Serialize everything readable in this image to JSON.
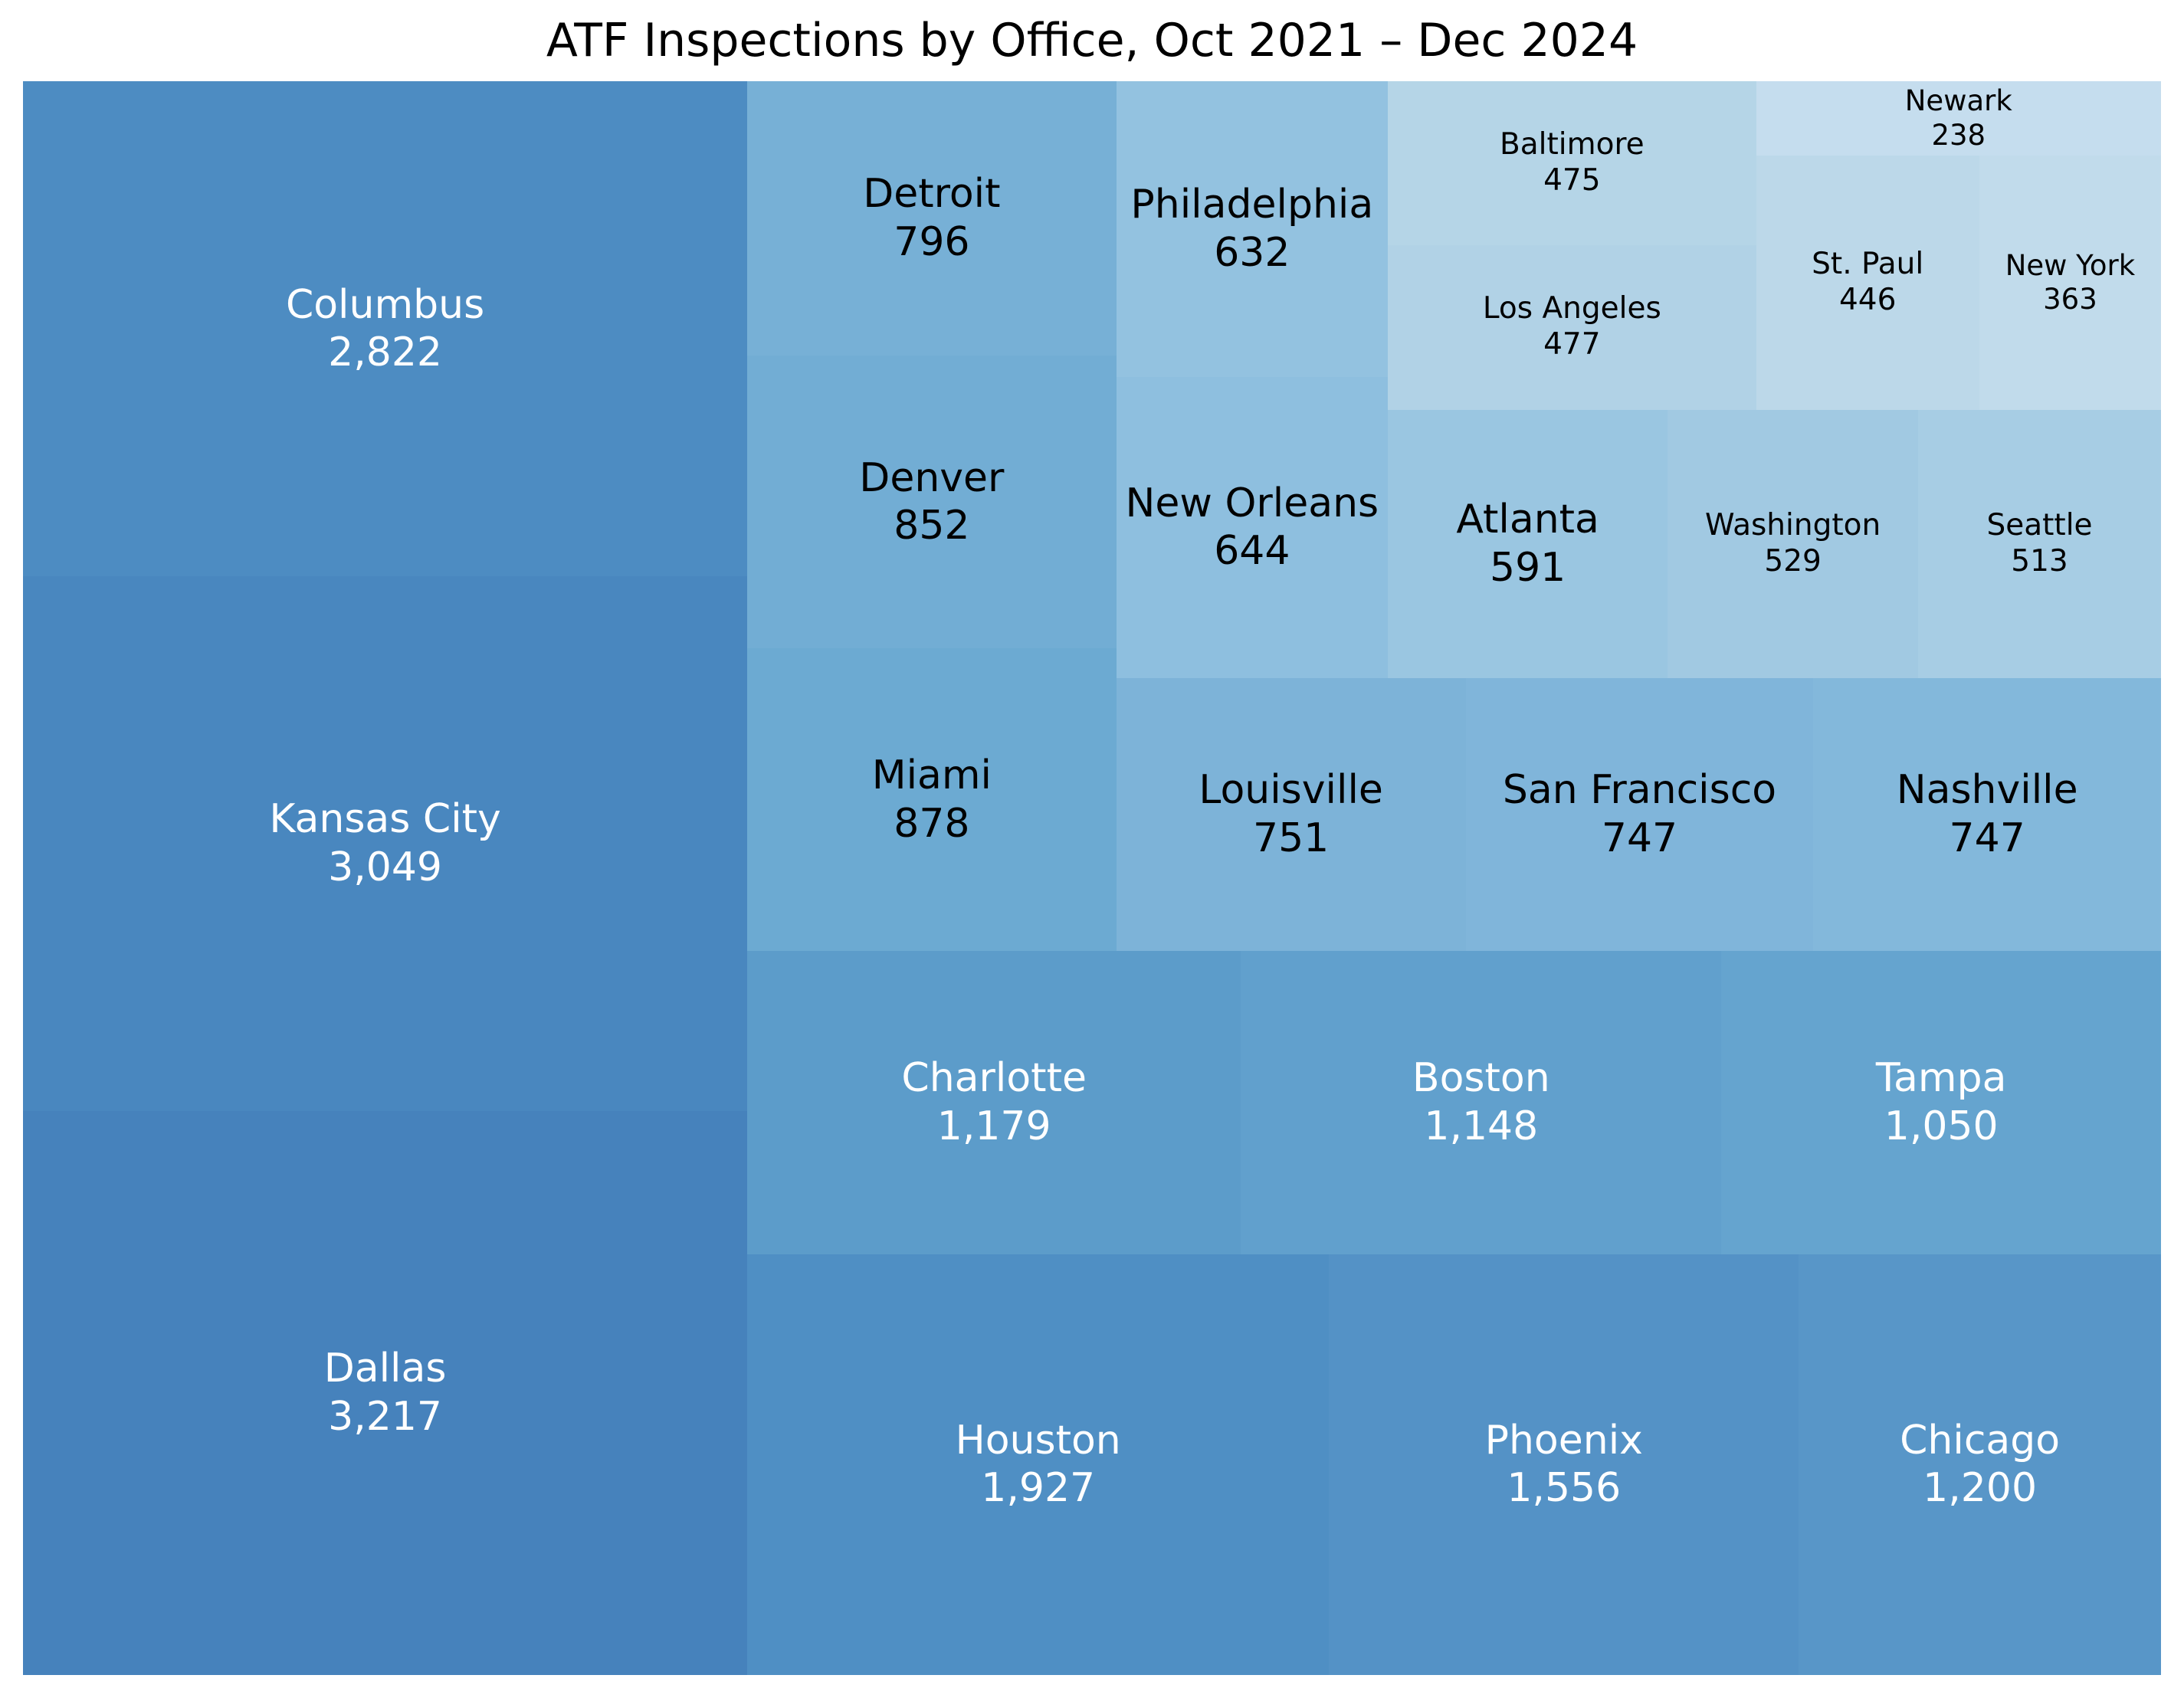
{
  "chart_data": {
    "type": "treemap",
    "title": "ATF Inspections by Office, Oct 2021 – Dec 2024",
    "items": [
      {
        "label": "Dallas",
        "value": 3217,
        "value_label": "3,217",
        "color": "#4682bc"
      },
      {
        "label": "Kansas City",
        "value": 3049,
        "value_label": "3,049",
        "color": "#4987bf"
      },
      {
        "label": "Columbus",
        "value": 2822,
        "value_label": "2,822",
        "color": "#4d8cc2"
      },
      {
        "label": "Houston",
        "value": 1927,
        "value_label": "1,927",
        "color": "#4f8fc4"
      },
      {
        "label": "Phoenix",
        "value": 1556,
        "value_label": "1,556",
        "color": "#5492c6"
      },
      {
        "label": "Chicago",
        "value": 1200,
        "value_label": "1,200",
        "color": "#5896c8"
      },
      {
        "label": "Charlotte",
        "value": 1179,
        "value_label": "1,179",
        "color": "#5c9cca"
      },
      {
        "label": "Boston",
        "value": 1148,
        "value_label": "1,148",
        "color": "#61a0cd"
      },
      {
        "label": "Tampa",
        "value": 1050,
        "value_label": "1,050",
        "color": "#65a4cf"
      },
      {
        "label": "Miami",
        "value": 878,
        "value_label": "878",
        "color": "#6caad2"
      },
      {
        "label": "Denver",
        "value": 852,
        "value_label": "852",
        "color": "#72add4"
      },
      {
        "label": "Detroit",
        "value": 796,
        "value_label": "796",
        "color": "#77b0d6"
      },
      {
        "label": "Louisville",
        "value": 751,
        "value_label": "751",
        "color": "#7db3d8"
      },
      {
        "label": "San Francisco",
        "value": 747,
        "value_label": "747",
        "color": "#80b5da"
      },
      {
        "label": "Nashville",
        "value": 747,
        "value_label": "747",
        "color": "#83b8db"
      },
      {
        "label": "New Orleans",
        "value": 644,
        "value_label": "644",
        "color": "#8ebfdf"
      },
      {
        "label": "Philadelphia",
        "value": 632,
        "value_label": "632",
        "color": "#93c2e0"
      },
      {
        "label": "Atlanta",
        "value": 591,
        "value_label": "591",
        "color": "#9ac6e1"
      },
      {
        "label": "Washington",
        "value": 529,
        "value_label": "529",
        "color": "#a1c9e2"
      },
      {
        "label": "Seattle",
        "value": 513,
        "value_label": "513",
        "color": "#a7cde4"
      },
      {
        "label": "Los Angeles",
        "value": 477,
        "value_label": "477",
        "color": "#b1d2e6"
      },
      {
        "label": "Baltimore",
        "value": 475,
        "value_label": "475",
        "color": "#b5d5e7"
      },
      {
        "label": "St. Paul",
        "value": 446,
        "value_label": "446",
        "color": "#bcd8e9"
      },
      {
        "label": "New York",
        "value": 363,
        "value_label": "363",
        "color": "#c1dbeb"
      },
      {
        "label": "Newark",
        "value": 238,
        "value_label": "238",
        "color": "#c5ddee"
      }
    ]
  }
}
